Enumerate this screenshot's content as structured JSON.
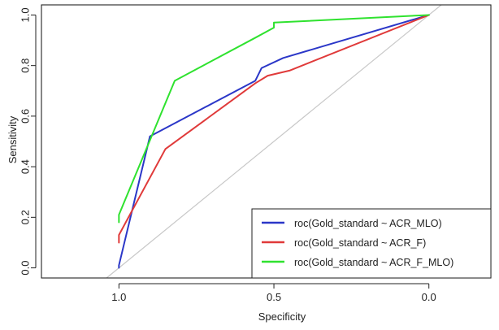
{
  "chart_data": {
    "type": "line",
    "title": "",
    "xlabel": "Specificity",
    "ylabel": "Sensitivity",
    "x_reversed": true,
    "xlim": [
      1.25,
      -0.2
    ],
    "ylim": [
      -0.04,
      1.04
    ],
    "x_ticks": [
      1.0,
      0.5,
      0.0
    ],
    "x_tick_labels": [
      "1.0",
      "0.5",
      "0.0"
    ],
    "y_ticks": [
      0.0,
      0.2,
      0.4,
      0.6,
      0.8,
      1.0
    ],
    "y_tick_labels": [
      "0.0",
      "0.2",
      "0.4",
      "0.6",
      "0.8",
      "1.0"
    ],
    "reference_line": {
      "from": [
        1.0,
        0.0
      ],
      "to": [
        0.0,
        1.0
      ],
      "color": "#c8c8c8"
    },
    "grid": false,
    "legend_position": "bottom-right",
    "series": [
      {
        "name": "roc(Gold_standard ~ ACR_MLO)",
        "color": "#2b37c8",
        "x": [
          1.0,
          1.0,
          0.9,
          0.56,
          0.54,
          0.47,
          0.0
        ],
        "y": [
          0.0,
          0.01,
          0.52,
          0.74,
          0.79,
          0.83,
          1.0
        ]
      },
      {
        "name": "roc(Gold_standard ~ ACR_F)",
        "color": "#e03a3a",
        "x": [
          1.0,
          1.0,
          0.85,
          0.56,
          0.52,
          0.45,
          0.0
        ],
        "y": [
          0.1,
          0.13,
          0.47,
          0.73,
          0.76,
          0.78,
          1.0
        ]
      },
      {
        "name": "roc(Gold_standard ~ ACR_F_MLO)",
        "color": "#2fe22f",
        "x": [
          1.0,
          1.0,
          0.82,
          0.56,
          0.5,
          0.5,
          0.0
        ],
        "y": [
          0.18,
          0.21,
          0.74,
          0.91,
          0.95,
          0.97,
          1.0
        ]
      }
    ]
  }
}
